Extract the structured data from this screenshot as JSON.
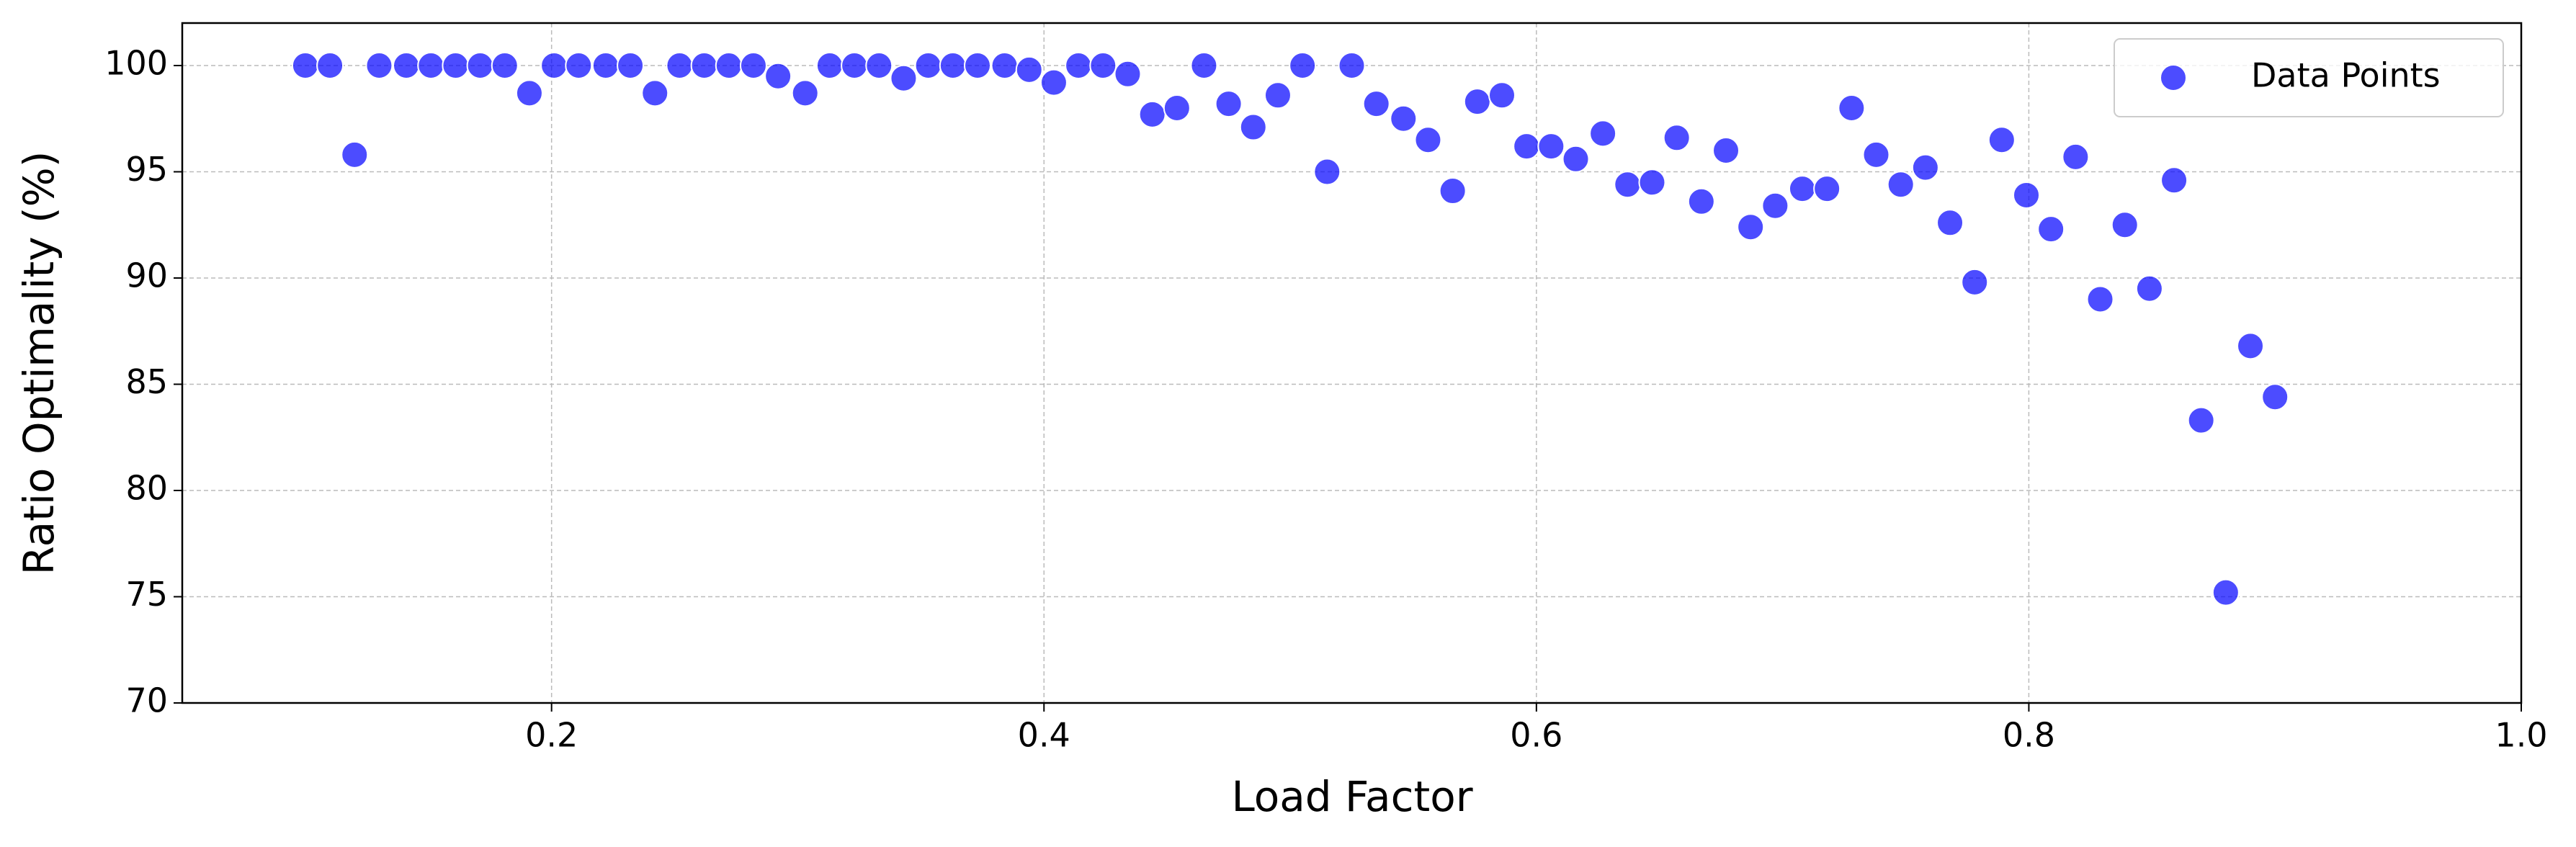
{
  "chart_data": {
    "type": "scatter",
    "xlabel": "Load Factor",
    "ylabel": "Ratio Optimality (%)",
    "series": [
      {
        "name": "Data Points",
        "color": "#0000ff",
        "x": [
          0.1,
          0.11,
          0.12,
          0.13,
          0.141,
          0.151,
          0.161,
          0.171,
          0.181,
          0.191,
          0.201,
          0.211,
          0.222,
          0.232,
          0.242,
          0.252,
          0.262,
          0.272,
          0.282,
          0.292,
          0.303,
          0.313,
          0.323,
          0.333,
          0.343,
          0.353,
          0.363,
          0.373,
          0.384,
          0.394,
          0.404,
          0.414,
          0.424,
          0.434,
          0.444,
          0.454,
          0.465,
          0.475,
          0.485,
          0.495,
          0.505,
          0.515,
          0.525,
          0.535,
          0.546,
          0.556,
          0.566,
          0.576,
          0.586,
          0.596,
          0.606,
          0.616,
          0.627,
          0.637,
          0.647,
          0.657,
          0.667,
          0.677,
          0.687,
          0.697,
          0.708,
          0.718,
          0.728,
          0.738,
          0.748,
          0.758,
          0.768,
          0.778,
          0.789,
          0.799,
          0.809,
          0.819,
          0.829,
          0.839,
          0.849,
          0.859,
          0.87,
          0.88,
          0.89,
          0.9
        ],
        "values": [
          100,
          100,
          95.8,
          100,
          100,
          100,
          100,
          100,
          100,
          98.7,
          100,
          100,
          100,
          100,
          98.7,
          100,
          100,
          100,
          100,
          99.5,
          98.7,
          100,
          100,
          100,
          99.4,
          100,
          100,
          100,
          100,
          99.8,
          99.2,
          100,
          100,
          99.6,
          97.7,
          98.0,
          100,
          98.2,
          97.1,
          98.6,
          100,
          95.0,
          100,
          98.2,
          97.5,
          96.5,
          94.1,
          98.3,
          98.6,
          96.2,
          96.2,
          95.6,
          96.8,
          94.4,
          94.5,
          96.6,
          93.6,
          96.0,
          92.4,
          93.4,
          94.2,
          94.2,
          98.0,
          95.8,
          94.4,
          95.2,
          92.6,
          89.8,
          96.5,
          93.9,
          92.3,
          95.7,
          89.0,
          92.5,
          89.5,
          94.6,
          83.3,
          75.2,
          86.8,
          84.4
        ]
      }
    ],
    "xlim": [
      0.05,
      1.0
    ],
    "ylim": [
      70,
      102
    ],
    "xticks": [
      0.2,
      0.4,
      0.6,
      0.8,
      {
        "value": 1,
        "label": "1.0"
      }
    ],
    "yticks": [
      70,
      75,
      80,
      85,
      90,
      95,
      100
    ],
    "grid": true,
    "legend": "upper right"
  }
}
